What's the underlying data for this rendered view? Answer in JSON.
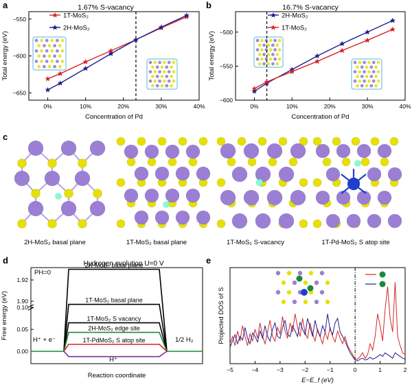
{
  "panels": {
    "a": {
      "letter": "a",
      "title": "1.67% S-vacancy"
    },
    "b": {
      "letter": "b",
      "title": "16.7% S-vacancy"
    },
    "c": {
      "letter": "c",
      "captions": [
        "2H-MoS₂ basal plane",
        "1T-MoS₂ basal plane",
        "1T-MoS₂ S-vacancy",
        "1T-Pd-MoS₂ S atop site"
      ]
    },
    "d": {
      "letter": "d",
      "title": "Hydrogen evolution U=0 V",
      "ph": "PH=0",
      "left_label": "H⁺ + e⁻",
      "right_label": "1/2 H₂",
      "bottom_label": "H⁺"
    },
    "e": {
      "letter": "e"
    }
  },
  "colors": {
    "red": "#d62728",
    "navy": "#1f1f8f",
    "black": "#000000",
    "green": "#1a8a3a",
    "purple": "#7b3294",
    "cyan": "#00a6d6"
  },
  "chart_data": [
    {
      "id": "a",
      "type": "line",
      "title": "1.67% S-vacancy",
      "xlabel": "Concentration of Pd",
      "ylabel": "Total energy (eV)",
      "xlim": [
        -5,
        40
      ],
      "ylim": [
        -660,
        -540
      ],
      "xticks": [
        0,
        10,
        20,
        30,
        40
      ],
      "xtick_labels": [
        "0%",
        "10%",
        "20%",
        "30%",
        "40%"
      ],
      "yticks": [
        -650,
        -600,
        -550
      ],
      "ytick_labels": [
        "−650",
        "−600",
        "−550"
      ],
      "legend": "top-left",
      "vline_x": 23.3,
      "series": [
        {
          "name": "1T-MoS₂",
          "color": "#d62728",
          "x": [
            0,
            3.3,
            10,
            16.7,
            23.3,
            30,
            36.7
          ],
          "y": [
            -631,
            -624,
            -608,
            -593,
            -578,
            -562,
            -547
          ]
        },
        {
          "name": "2H-MoS₂",
          "color": "#1f1f8f",
          "x": [
            0,
            3.3,
            10,
            16.7,
            23.3,
            30,
            36.7
          ],
          "y": [
            -646,
            -637,
            -617,
            -597,
            -578,
            -561,
            -545
          ]
        }
      ]
    },
    {
      "id": "b",
      "type": "line",
      "title": "16.7% S-vacancy",
      "xlabel": "Concentration of Pd",
      "ylabel": "Total energy (eV)",
      "xlim": [
        -5,
        40
      ],
      "ylim": [
        -600,
        -470
      ],
      "xticks": [
        0,
        10,
        20,
        30,
        40
      ],
      "xtick_labels": [
        "0%",
        "10%",
        "20%",
        "30%",
        "40%"
      ],
      "yticks": [
        -600,
        -550,
        -500
      ],
      "ytick_labels": [
        "−600",
        "−550",
        "−500"
      ],
      "legend": "top-left",
      "vline_x": 3.3,
      "series": [
        {
          "name": "2H-MoS₂",
          "color": "#1f1f8f",
          "x": [
            0,
            3.3,
            10,
            16.7,
            23.3,
            30,
            36.7
          ],
          "y": [
            -587,
            -575,
            -555,
            -535,
            -517,
            -500,
            -483
          ]
        },
        {
          "name": "1T-MoS₂",
          "color": "#d62728",
          "x": [
            0,
            3.3,
            10,
            16.7,
            23.3,
            30,
            36.7
          ],
          "y": [
            -583,
            -573,
            -558,
            -543,
            -527,
            -512,
            -496
          ]
        }
      ]
    },
    {
      "id": "d",
      "type": "line",
      "title": "Hydrogen evolution U=0 V",
      "xlabel": "Reaction coordinate",
      "ylabel": "Free energy (eV)",
      "ytick_labels": [
        "0.00",
        "0.05",
        "0.10",
        "1.90",
        "1.92"
      ],
      "yticks_low": [
        0,
        0.05,
        0.1
      ],
      "yticks_high": [
        1.9,
        1.92
      ],
      "series": [
        {
          "name": "2H-MoS₂ basal plane",
          "color": "#000000",
          "value": 1.93
        },
        {
          "name": "1T-MoS₂ basal plane",
          "color": "#000000",
          "value": 0.107
        },
        {
          "name": "1T-MoS₂ S vacancy",
          "color": "#000000",
          "value": 0.065
        },
        {
          "name": "2H-MoS₂ edge site",
          "color": "#1a8a3a",
          "value": 0.043
        },
        {
          "name": "1T-PdMoS₂ S atop site",
          "color": "#d62728",
          "value": 0.016
        },
        {
          "name": "H⁺",
          "color": "#7b3294",
          "value": -0.012
        }
      ]
    },
    {
      "id": "e",
      "type": "line",
      "xlabel": "E−E_f (eV)",
      "ylabel": "Projected DOS of S",
      "xlim": [
        -5,
        2
      ],
      "xticks": [
        -5,
        -4,
        -3,
        -2,
        -1,
        0,
        1,
        2
      ],
      "xtick_labels": [
        "−5",
        "−4",
        "−3",
        "−2",
        "−1",
        "0",
        "1",
        "2"
      ],
      "vline_x": 0,
      "legend": "top-right",
      "series": [
        {
          "name": "",
          "color": "#d62728",
          "x": [
            -5,
            -4.9,
            -4.8,
            -4.7,
            -4.6,
            -4.5,
            -4.4,
            -4.3,
            -4.2,
            -4.1,
            -4.0,
            -3.9,
            -3.8,
            -3.7,
            -3.6,
            -3.5,
            -3.4,
            -3.3,
            -3.2,
            -3.1,
            -3.0,
            -2.9,
            -2.8,
            -2.7,
            -2.6,
            -2.5,
            -2.4,
            -2.3,
            -2.2,
            -2.1,
            -2.0,
            -1.9,
            -1.8,
            -1.7,
            -1.6,
            -1.5,
            -1.4,
            -1.3,
            -1.2,
            -1.1,
            -1.0,
            -0.9,
            -0.8,
            -0.7,
            -0.6,
            -0.5,
            -0.4,
            -0.3,
            -0.2,
            -0.1,
            0,
            0.1,
            0.2,
            0.3,
            0.4,
            0.5,
            0.6,
            0.7,
            0.8,
            0.9,
            1.0,
            1.1,
            1.2,
            1.3,
            1.4,
            1.5,
            1.6,
            1.7,
            1.8,
            1.9,
            2.0
          ],
          "y": [
            0.22,
            0.3,
            0.2,
            0.36,
            0.25,
            0.42,
            0.3,
            0.2,
            0.33,
            0.25,
            0.38,
            0.28,
            0.45,
            0.3,
            0.22,
            0.35,
            0.48,
            0.3,
            0.25,
            0.4,
            0.33,
            0.52,
            0.36,
            0.28,
            0.45,
            0.35,
            0.55,
            0.4,
            0.3,
            0.5,
            0.34,
            0.28,
            0.45,
            0.33,
            0.25,
            0.38,
            0.3,
            0.22,
            0.35,
            0.27,
            0.4,
            0.3,
            0.24,
            0.36,
            0.28,
            0.22,
            0.3,
            0.2,
            0.15,
            0.1,
            0.05,
            0.05,
            0.08,
            0.12,
            0.06,
            0.1,
            0.22,
            0.15,
            0.3,
            0.55,
            0.42,
            0.25,
            0.6,
            0.85,
            0.5,
            0.35,
            0.9,
            0.3,
            0.2,
            0.12,
            0.1
          ]
        },
        {
          "name": "",
          "color": "#1f1f8f",
          "x": [
            -5,
            -4.9,
            -4.8,
            -4.7,
            -4.6,
            -4.5,
            -4.4,
            -4.3,
            -4.2,
            -4.1,
            -4.0,
            -3.9,
            -3.8,
            -3.7,
            -3.6,
            -3.5,
            -3.4,
            -3.3,
            -3.2,
            -3.1,
            -3.0,
            -2.9,
            -2.8,
            -2.7,
            -2.6,
            -2.5,
            -2.4,
            -2.3,
            -2.2,
            -2.1,
            -2.0,
            -1.9,
            -1.8,
            -1.7,
            -1.6,
            -1.5,
            -1.4,
            -1.3,
            -1.2,
            -1.1,
            -1.0,
            -0.9,
            -0.8,
            -0.7,
            -0.6,
            -0.5,
            -0.4,
            -0.3,
            -0.2,
            -0.1,
            0,
            0.1,
            0.2,
            0.3,
            0.4,
            0.5,
            0.6,
            0.7,
            0.8,
            0.9,
            1.0,
            1.1,
            1.2,
            1.3,
            1.4,
            1.5,
            1.6,
            1.7,
            1.8,
            1.9,
            2.0
          ],
          "y": [
            0.18,
            0.25,
            0.32,
            0.22,
            0.3,
            0.26,
            0.4,
            0.28,
            0.22,
            0.34,
            0.3,
            0.24,
            0.36,
            0.28,
            0.42,
            0.3,
            0.25,
            0.38,
            0.45,
            0.3,
            0.28,
            0.4,
            0.48,
            0.32,
            0.3,
            0.42,
            0.36,
            0.3,
            0.46,
            0.38,
            0.32,
            0.5,
            0.4,
            0.3,
            0.48,
            0.36,
            0.3,
            0.42,
            0.35,
            0.55,
            0.38,
            0.32,
            0.45,
            0.5,
            0.35,
            0.3,
            0.25,
            0.18,
            0.12,
            0.08,
            0.04,
            0.03,
            0.05,
            0.06,
            0.04,
            0.05,
            0.07,
            0.05,
            0.06,
            0.08,
            0.1,
            0.08,
            0.12,
            0.1,
            0.08,
            0.06,
            0.12,
            0.1,
            0.08,
            0.06,
            0.05
          ]
        }
      ]
    }
  ]
}
